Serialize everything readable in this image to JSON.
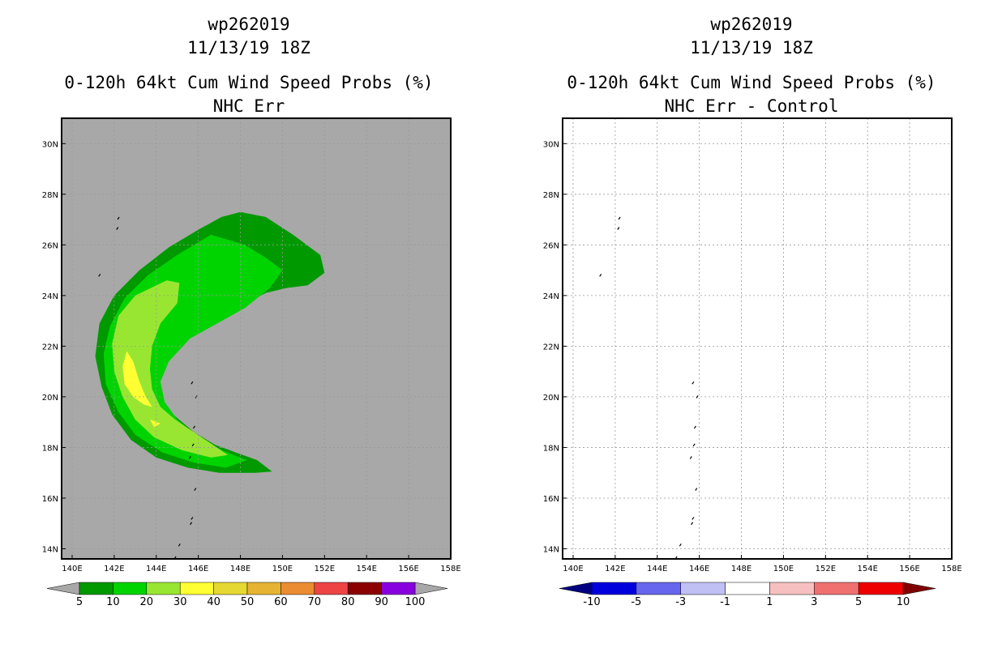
{
  "left_panel": {
    "storm_id": "wp262019",
    "datetime": "11/13/19 18Z",
    "product": "0-120h 64kt Cum Wind Speed Probs (%)",
    "subtitle": "NHC Err",
    "background_color": "#a8a8a8",
    "colorbar": {
      "labels": [
        "5",
        "10",
        "20",
        "30",
        "40",
        "50",
        "60",
        "70",
        "80",
        "90",
        "100"
      ],
      "colors": [
        "#009900",
        "#00d400",
        "#99e632",
        "#ffff33",
        "#e6d832",
        "#e6b432",
        "#ec8c32",
        "#ee4444",
        "#8b0000",
        "#8800dd"
      ],
      "under_color": "#a8a8a8",
      "over_color": "#a8a8a8"
    }
  },
  "right_panel": {
    "storm_id": "wp262019",
    "datetime": "11/13/19 18Z",
    "product": "0-120h 64kt Cum Wind Speed Probs (%)",
    "subtitle": "NHC Err - Control",
    "background_color": "#ffffff",
    "colorbar": {
      "labels": [
        "-10",
        "-5",
        "-3",
        "-1",
        "1",
        "3",
        "5",
        "10"
      ],
      "colors": [
        "#0000dd",
        "#6666ee",
        "#c0c0f4",
        "#ffffff",
        "#f7c0c0",
        "#f07070",
        "#ee0000"
      ],
      "under_color": "#000080",
      "over_color": "#800000"
    }
  },
  "axes": {
    "x_ticks": [
      "140E",
      "142E",
      "144E",
      "146E",
      "148E",
      "150E",
      "152E",
      "154E",
      "156E",
      "158E"
    ],
    "y_ticks": [
      "14N",
      "16N",
      "18N",
      "20N",
      "22N",
      "24N",
      "26N",
      "28N",
      "30N"
    ]
  },
  "chart_data": {
    "type": "map-contour",
    "lon_range": [
      139.5,
      158
    ],
    "lat_range": [
      13.6,
      31
    ],
    "x_ticks_deg": [
      140,
      142,
      144,
      146,
      148,
      150,
      152,
      154,
      156,
      158
    ],
    "y_ticks_deg": [
      14,
      16,
      18,
      20,
      22,
      24,
      26,
      28,
      30
    ],
    "contour_levels": [
      5,
      10,
      20,
      30
    ],
    "contours_lonlat": {
      "p5": [
        [
          148,
          27.3
        ],
        [
          149.2,
          27.1
        ],
        [
          150.5,
          26.4
        ],
        [
          151.8,
          25.6
        ],
        [
          152,
          24.9
        ],
        [
          151.2,
          24.4
        ],
        [
          150.2,
          24.3
        ],
        [
          149.2,
          24.1
        ],
        [
          148.5,
          23.8
        ],
        [
          147.5,
          23.5
        ],
        [
          146.4,
          23.1
        ],
        [
          145.5,
          22.6
        ],
        [
          144.7,
          21.9
        ],
        [
          144.1,
          21.2
        ],
        [
          143.8,
          20.5
        ],
        [
          144.2,
          19.9
        ],
        [
          144.8,
          19.3
        ],
        [
          145.8,
          18.6
        ],
        [
          146.8,
          18.1
        ],
        [
          147.8,
          17.8
        ],
        [
          148.8,
          17.5
        ],
        [
          149.5,
          17.05
        ],
        [
          148.7,
          17.0
        ],
        [
          147.0,
          17.0
        ],
        [
          145.5,
          17.2
        ],
        [
          144.0,
          17.6
        ],
        [
          142.8,
          18.3
        ],
        [
          141.9,
          19.3
        ],
        [
          141.4,
          20.4
        ],
        [
          141.1,
          21.6
        ],
        [
          141.3,
          22.9
        ],
        [
          142.0,
          24.0
        ],
        [
          143.2,
          25.0
        ],
        [
          144.6,
          25.9
        ],
        [
          146.0,
          26.6
        ],
        [
          147.1,
          27.1
        ]
      ],
      "p10": [
        [
          146.6,
          26.4
        ],
        [
          148.2,
          26.0
        ],
        [
          149.2,
          25.5
        ],
        [
          150.0,
          25.0
        ],
        [
          149.4,
          24.3
        ],
        [
          148.2,
          23.5
        ],
        [
          146.9,
          22.9
        ],
        [
          145.6,
          22.3
        ],
        [
          144.6,
          21.4
        ],
        [
          144.2,
          20.6
        ],
        [
          144.4,
          19.8
        ],
        [
          145.0,
          19.1
        ],
        [
          146.0,
          18.4
        ],
        [
          147.1,
          17.9
        ],
        [
          148.3,
          17.5
        ],
        [
          147.3,
          17.2
        ],
        [
          145.8,
          17.4
        ],
        [
          144.3,
          17.8
        ],
        [
          143.0,
          18.5
        ],
        [
          142.2,
          19.4
        ],
        [
          141.6,
          20.5
        ],
        [
          141.5,
          21.7
        ],
        [
          141.8,
          22.8
        ],
        [
          142.5,
          23.9
        ],
        [
          143.6,
          24.8
        ],
        [
          145.0,
          25.6
        ]
      ],
      "p20": [
        [
          144.5,
          24.6
        ],
        [
          145.1,
          24.5
        ],
        [
          145.0,
          23.7
        ],
        [
          144.2,
          22.9
        ],
        [
          143.8,
          22.0
        ],
        [
          143.7,
          21.1
        ],
        [
          143.8,
          20.3
        ],
        [
          144.2,
          19.6
        ],
        [
          144.9,
          19.1
        ],
        [
          145.8,
          18.6
        ],
        [
          146.7,
          18.1
        ],
        [
          147.4,
          17.7
        ],
        [
          146.6,
          17.6
        ],
        [
          145.2,
          17.9
        ],
        [
          143.9,
          18.4
        ],
        [
          143.0,
          19.1
        ],
        [
          142.4,
          20.0
        ],
        [
          142.0,
          21.0
        ],
        [
          141.9,
          22.1
        ],
        [
          142.2,
          23.2
        ],
        [
          143.0,
          24.0
        ]
      ],
      "p30": [
        [
          142.6,
          21.8
        ],
        [
          142.9,
          21.4
        ],
        [
          143.2,
          20.6
        ],
        [
          143.5,
          20.0
        ],
        [
          143.8,
          19.6
        ],
        [
          143.4,
          19.7
        ],
        [
          142.9,
          20.0
        ],
        [
          142.5,
          20.5
        ],
        [
          142.4,
          21.2
        ]
      ],
      "p30b": [
        [
          143.7,
          19.1
        ],
        [
          144.2,
          18.95
        ],
        [
          143.9,
          18.8
        ]
      ]
    }
  }
}
